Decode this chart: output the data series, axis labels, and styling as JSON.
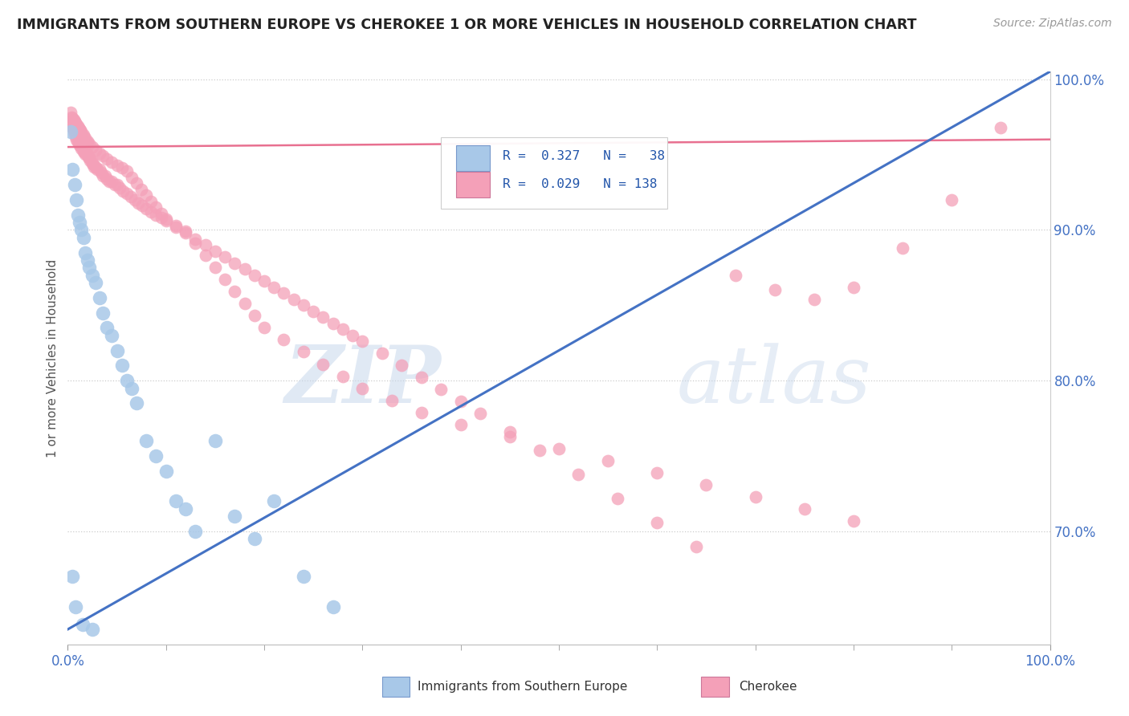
{
  "title": "IMMIGRANTS FROM SOUTHERN EUROPE VS CHEROKEE 1 OR MORE VEHICLES IN HOUSEHOLD CORRELATION CHART",
  "source": "Source: ZipAtlas.com",
  "ylabel": "1 or more Vehicles in Household",
  "color_blue": "#A8C8E8",
  "color_pink": "#F4A0B8",
  "color_blue_line": "#4472C4",
  "color_pink_line": "#E87090",
  "background_color": "#FFFFFF",
  "watermark_zip": "ZIP",
  "watermark_atlas": "atlas",
  "xlim": [
    0.0,
    1.0
  ],
  "ylim": [
    0.625,
    1.005
  ],
  "ytick_vals": [
    0.7,
    0.8,
    0.9,
    1.0
  ],
  "ytick_labels": [
    "70.0%",
    "80.0%",
    "90.0%",
    "100.0%"
  ],
  "blue_line_x": [
    0.0,
    1.0
  ],
  "blue_line_y": [
    0.635,
    1.005
  ],
  "pink_line_x": [
    0.0,
    1.0
  ],
  "pink_line_y": [
    0.955,
    0.96
  ],
  "blue_points_x": [
    0.003,
    0.005,
    0.007,
    0.009,
    0.01,
    0.012,
    0.014,
    0.016,
    0.018,
    0.02,
    0.022,
    0.025,
    0.028,
    0.032,
    0.036,
    0.04,
    0.045,
    0.05,
    0.055,
    0.06,
    0.065,
    0.07,
    0.08,
    0.09,
    0.1,
    0.11,
    0.12,
    0.13,
    0.15,
    0.17,
    0.19,
    0.21,
    0.24,
    0.27,
    0.005,
    0.008,
    0.015,
    0.025
  ],
  "blue_points_y": [
    0.965,
    0.94,
    0.93,
    0.92,
    0.91,
    0.905,
    0.9,
    0.895,
    0.885,
    0.88,
    0.875,
    0.87,
    0.865,
    0.855,
    0.845,
    0.835,
    0.83,
    0.82,
    0.81,
    0.8,
    0.795,
    0.785,
    0.76,
    0.75,
    0.74,
    0.72,
    0.715,
    0.7,
    0.76,
    0.71,
    0.695,
    0.72,
    0.67,
    0.65,
    0.67,
    0.65,
    0.638,
    0.635
  ],
  "pink_points_x": [
    0.003,
    0.004,
    0.005,
    0.006,
    0.007,
    0.008,
    0.009,
    0.01,
    0.011,
    0.012,
    0.013,
    0.014,
    0.015,
    0.016,
    0.017,
    0.018,
    0.019,
    0.02,
    0.021,
    0.022,
    0.023,
    0.024,
    0.025,
    0.026,
    0.027,
    0.028,
    0.03,
    0.032,
    0.034,
    0.036,
    0.038,
    0.04,
    0.042,
    0.045,
    0.048,
    0.05,
    0.053,
    0.056,
    0.06,
    0.064,
    0.068,
    0.072,
    0.076,
    0.08,
    0.085,
    0.09,
    0.095,
    0.1,
    0.11,
    0.12,
    0.13,
    0.14,
    0.15,
    0.16,
    0.17,
    0.18,
    0.19,
    0.2,
    0.21,
    0.22,
    0.23,
    0.24,
    0.25,
    0.26,
    0.27,
    0.28,
    0.29,
    0.3,
    0.32,
    0.34,
    0.36,
    0.38,
    0.4,
    0.42,
    0.45,
    0.48,
    0.52,
    0.56,
    0.6,
    0.64,
    0.68,
    0.72,
    0.76,
    0.8,
    0.85,
    0.9,
    0.95,
    0.004,
    0.006,
    0.008,
    0.01,
    0.012,
    0.014,
    0.016,
    0.018,
    0.02,
    0.022,
    0.025,
    0.028,
    0.032,
    0.036,
    0.04,
    0.045,
    0.05,
    0.055,
    0.06,
    0.065,
    0.07,
    0.075,
    0.08,
    0.085,
    0.09,
    0.095,
    0.1,
    0.11,
    0.12,
    0.13,
    0.14,
    0.15,
    0.16,
    0.17,
    0.18,
    0.19,
    0.2,
    0.22,
    0.24,
    0.26,
    0.28,
    0.3,
    0.33,
    0.36,
    0.4,
    0.45,
    0.5,
    0.55,
    0.6,
    0.65,
    0.7,
    0.75,
    0.8,
    0.003,
    0.005,
    0.007,
    0.009,
    0.011,
    0.013,
    0.016,
    0.019
  ],
  "pink_points_y": [
    0.972,
    0.97,
    0.968,
    0.966,
    0.964,
    0.962,
    0.96,
    0.958,
    0.958,
    0.956,
    0.956,
    0.954,
    0.954,
    0.952,
    0.952,
    0.95,
    0.95,
    0.95,
    0.948,
    0.948,
    0.946,
    0.946,
    0.944,
    0.944,
    0.942,
    0.942,
    0.94,
    0.94,
    0.938,
    0.936,
    0.936,
    0.934,
    0.932,
    0.932,
    0.93,
    0.93,
    0.928,
    0.926,
    0.924,
    0.922,
    0.92,
    0.918,
    0.916,
    0.914,
    0.912,
    0.91,
    0.908,
    0.906,
    0.902,
    0.898,
    0.894,
    0.89,
    0.886,
    0.882,
    0.878,
    0.874,
    0.87,
    0.866,
    0.862,
    0.858,
    0.854,
    0.85,
    0.846,
    0.842,
    0.838,
    0.834,
    0.83,
    0.826,
    0.818,
    0.81,
    0.802,
    0.794,
    0.786,
    0.778,
    0.766,
    0.754,
    0.738,
    0.722,
    0.706,
    0.69,
    0.87,
    0.86,
    0.854,
    0.862,
    0.888,
    0.92,
    0.968,
    0.975,
    0.973,
    0.971,
    0.969,
    0.967,
    0.965,
    0.963,
    0.961,
    0.959,
    0.957,
    0.955,
    0.953,
    0.951,
    0.949,
    0.947,
    0.945,
    0.943,
    0.941,
    0.939,
    0.935,
    0.931,
    0.927,
    0.923,
    0.919,
    0.915,
    0.911,
    0.907,
    0.903,
    0.899,
    0.891,
    0.883,
    0.875,
    0.867,
    0.859,
    0.851,
    0.843,
    0.835,
    0.827,
    0.819,
    0.811,
    0.803,
    0.795,
    0.787,
    0.779,
    0.771,
    0.763,
    0.755,
    0.747,
    0.739,
    0.731,
    0.723,
    0.715,
    0.707,
    0.978,
    0.974,
    0.972,
    0.97,
    0.968,
    0.966,
    0.962,
    0.958
  ]
}
